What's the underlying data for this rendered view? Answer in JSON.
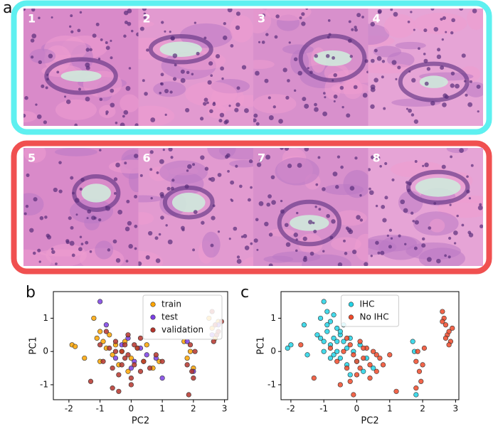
{
  "figure": {
    "panel_labels": [
      "a",
      "b",
      "c"
    ],
    "tiles": [
      "1",
      "2",
      "3",
      "4",
      "5",
      "6",
      "7",
      "8"
    ]
  },
  "chart_data": [
    {
      "type": "scatter",
      "x_label": "PC2",
      "y_label": "PC1",
      "legend": "upper right",
      "xlim": [
        -2.5,
        3.1
      ],
      "ylim": [
        -1.45,
        1.8
      ],
      "xticks": [
        -2,
        -1,
        0,
        1,
        2,
        3
      ],
      "yticks": [
        -1,
        0,
        1
      ],
      "series": [
        {
          "name": "train",
          "color": "#ffa500",
          "x": [
            -1.9,
            -1.8,
            -1.5,
            -1.2,
            -1.1,
            -1.0,
            -0.9,
            -0.8,
            -1.0,
            -0.7,
            -0.6,
            -0.5,
            -0.4,
            -0.3,
            -0.2,
            -0.1,
            0.0,
            0.2,
            0.4,
            0.5,
            0.7,
            0.9,
            1.7,
            1.8,
            1.9,
            2.0,
            2.5,
            2.6,
            2.7,
            2.8
          ],
          "values": [
            0.2,
            0.15,
            -0.2,
            1.0,
            0.4,
            0.6,
            0.3,
            0.1,
            -0.3,
            0.5,
            -0.1,
            0.2,
            -0.4,
            0.0,
            0.3,
            -0.6,
            -0.2,
            0.1,
            -0.3,
            0.2,
            -0.5,
            -0.3,
            0.3,
            -0.2,
            0.0,
            -0.5,
            1.0,
            0.7,
            0.4,
            0.9
          ]
        },
        {
          "name": "test",
          "color": "#7b3fe4",
          "x": [
            -1.0,
            -0.8,
            -0.5,
            -0.3,
            -0.1,
            0.1,
            0.3,
            0.5,
            0.8,
            1.0,
            1.8,
            2.0,
            2.6,
            2.8,
            0.0
          ],
          "values": [
            1.5,
            0.8,
            -0.2,
            0.2,
            0.4,
            -0.3,
            0.1,
            -0.1,
            -0.2,
            -0.8,
            0.3,
            -0.6,
            0.5,
            0.8,
            -0.5
          ]
        },
        {
          "name": "validation",
          "color": "#b5342c",
          "x": [
            -1.3,
            -1.0,
            -0.9,
            -0.8,
            -0.7,
            -0.6,
            -0.5,
            -0.4,
            -0.3,
            -0.2,
            -0.1,
            0.0,
            0.1,
            0.2,
            0.3,
            -0.5,
            -0.3,
            -0.1,
            0.1,
            0.0,
            0.4,
            0.6,
            0.8,
            1.0,
            -0.6,
            -0.2,
            1.8,
            1.9,
            2.0,
            1.85,
            1.95,
            2.05,
            2.6,
            2.7,
            2.75,
            2.8,
            2.65,
            2.9,
            -0.4,
            0.3
          ],
          "values": [
            -0.9,
            0.2,
            -0.3,
            0.6,
            0.1,
            -0.5,
            0.3,
            -0.7,
            0.0,
            -0.2,
            0.5,
            -1.0,
            -0.4,
            0.1,
            -0.6,
            0.0,
            -0.4,
            -0.1,
            0.2,
            -0.8,
            -0.3,
            -0.5,
            -0.1,
            -0.3,
            -1.1,
            0.2,
            -0.4,
            0.2,
            -0.8,
            -1.3,
            -0.6,
            0.0,
            1.2,
            0.8,
            0.5,
            0.6,
            0.3,
            0.9,
            -1.2,
            0.4
          ]
        }
      ]
    },
    {
      "type": "scatter",
      "x_label": "PC2",
      "y_label": "PC1",
      "legend": "upper center",
      "xlim": [
        -2.3,
        3.1
      ],
      "ylim": [
        -1.45,
        1.8
      ],
      "xticks": [
        -2,
        -1,
        0,
        1,
        2,
        3
      ],
      "yticks": [
        -1,
        0,
        1
      ],
      "series": [
        {
          "name": "IHC",
          "color": "#22d3e6",
          "x": [
            -2.1,
            -2.0,
            -1.6,
            -1.5,
            -1.2,
            -1.1,
            -1.0,
            -1.0,
            -0.9,
            -0.9,
            -0.8,
            -0.8,
            -0.7,
            -0.7,
            -0.6,
            -0.6,
            -0.5,
            -0.5,
            -0.4,
            -0.4,
            -0.3,
            -0.3,
            -0.2,
            -0.1,
            0.0,
            0.1,
            0.2,
            -1.0,
            -0.8,
            -0.6,
            0.5,
            1.7,
            1.8,
            -0.9,
            -0.7,
            -0.5,
            -1.1,
            -0.2,
            0.3,
            1.75
          ],
          "values": [
            0.1,
            0.2,
            0.8,
            -0.1,
            0.5,
            1.0,
            1.5,
            0.3,
            1.2,
            0.6,
            0.9,
            0.2,
            1.1,
            0.4,
            0.7,
            0.0,
            0.5,
            -0.2,
            0.3,
            0.8,
            0.1,
            -0.4,
            0.4,
            0.0,
            -0.3,
            0.2,
            -0.6,
            0.0,
            -0.2,
            0.3,
            -0.5,
            0.3,
            -1.3,
            0.8,
            -0.1,
            0.6,
            0.4,
            -0.7,
            -0.2,
            0.0
          ]
        },
        {
          "name": "No IHC",
          "color": "#f04a2a",
          "x": [
            -1.7,
            -1.3,
            -0.8,
            -0.6,
            -0.4,
            -0.3,
            -0.2,
            -0.1,
            0.0,
            0.1,
            0.2,
            0.3,
            0.4,
            0.5,
            0.6,
            0.7,
            0.8,
            1.0,
            -0.5,
            -0.2,
            0.0,
            0.2,
            -0.3,
            0.4,
            1.2,
            1.8,
            1.85,
            1.9,
            1.95,
            2.0,
            1.8,
            2.05,
            2.6,
            2.65,
            2.7,
            2.75,
            2.8,
            2.85,
            2.9,
            2.7,
            2.6,
            2.8,
            -0.1,
            0.6,
            0.1
          ],
          "values": [
            0.2,
            -0.8,
            0.1,
            -0.3,
            0.0,
            -0.5,
            0.2,
            -0.1,
            -0.7,
            0.3,
            -0.2,
            0.1,
            -0.4,
            0.0,
            -0.6,
            -0.2,
            -0.4,
            -0.1,
            -1.0,
            -0.9,
            -0.3,
            0.1,
            0.4,
            -0.8,
            -1.2,
            -0.3,
            0.0,
            -0.6,
            -0.9,
            -0.4,
            -1.1,
            0.1,
            1.2,
            1.0,
            0.8,
            0.5,
            0.6,
            0.3,
            0.7,
            0.4,
            0.9,
            0.2,
            -1.3,
            -0.1,
            -0.5
          ]
        }
      ]
    }
  ]
}
